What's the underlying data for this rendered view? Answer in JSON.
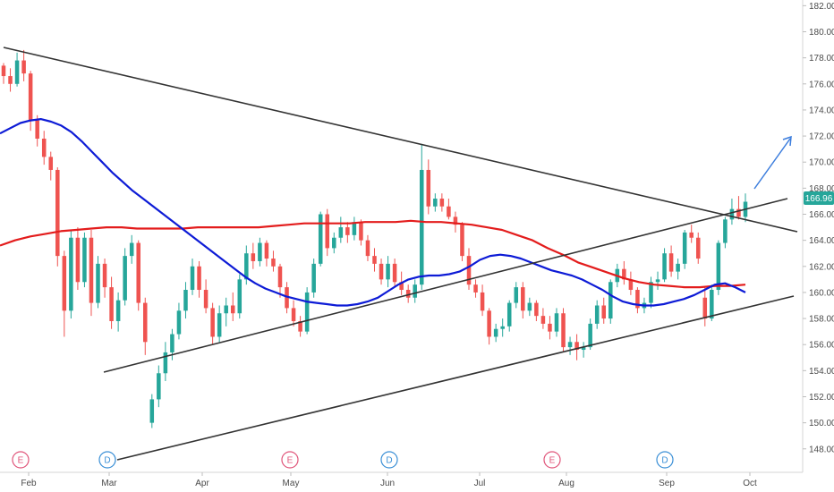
{
  "chart_data": {
    "type": "candlestick",
    "x_labels": [
      "Feb",
      "Mar",
      "Apr",
      "May",
      "Jun",
      "Jul",
      "Aug",
      "Sep",
      "Oct"
    ],
    "y_ticks": [
      "148.00",
      "150.00",
      "152.00",
      "154.00",
      "156.00",
      "158.00",
      "160.00",
      "162.00",
      "164.00",
      "166.00",
      "168.00",
      "170.00",
      "172.00",
      "174.00",
      "176.00",
      "178.00",
      "180.00",
      "182.00"
    ],
    "ylim": [
      146.2,
      182.3
    ],
    "last_price": "166.96",
    "colors": {
      "up": "#26a69a",
      "down": "#ef5350",
      "ma_fast": "#0d1bd6",
      "ma_slow": "#e31c1c",
      "trendline": "#333333",
      "arrow": "#3b7ddd",
      "price_tag": "#26a69a",
      "earnings_marker": "#e0557a",
      "dividend_marker": "#3a8fd6"
    },
    "candles": [
      [
        177.4,
        177.6,
        176.0,
        176.6
      ],
      [
        176.6,
        177.2,
        175.4,
        176.0
      ],
      [
        176.0,
        178.4,
        175.8,
        177.8
      ],
      [
        177.8,
        178.6,
        176.2,
        176.8
      ],
      [
        176.8,
        177.0,
        172.4,
        173.2
      ],
      [
        173.2,
        173.6,
        171.2,
        171.8
      ],
      [
        171.8,
        172.4,
        169.8,
        170.4
      ],
      [
        170.4,
        170.8,
        168.6,
        169.4
      ],
      [
        169.4,
        169.6,
        162.0,
        162.8
      ],
      [
        162.8,
        163.2,
        156.6,
        158.6
      ],
      [
        158.6,
        164.8,
        158.0,
        164.2
      ],
      [
        164.2,
        165.0,
        160.2,
        160.8
      ],
      [
        160.8,
        164.6,
        160.4,
        164.2
      ],
      [
        164.2,
        164.8,
        158.2,
        159.2
      ],
      [
        159.2,
        162.8,
        158.8,
        162.2
      ],
      [
        162.2,
        162.6,
        159.6,
        160.4
      ],
      [
        160.4,
        161.2,
        157.2,
        157.8
      ],
      [
        157.8,
        160.0,
        157.0,
        159.4
      ],
      [
        159.4,
        163.4,
        159.0,
        162.8
      ],
      [
        162.8,
        164.4,
        162.2,
        163.8
      ],
      [
        163.8,
        164.0,
        158.6,
        159.2
      ],
      [
        159.2,
        159.6,
        155.2,
        156.2
      ],
      [
        150.0,
        152.2,
        149.6,
        151.8
      ],
      [
        151.8,
        154.4,
        151.2,
        153.8
      ],
      [
        153.8,
        156.2,
        153.2,
        155.4
      ],
      [
        155.4,
        157.2,
        154.8,
        156.8
      ],
      [
        156.8,
        159.2,
        156.4,
        158.6
      ],
      [
        158.6,
        160.8,
        158.0,
        160.2
      ],
      [
        160.2,
        162.6,
        159.8,
        162.0
      ],
      [
        162.0,
        162.4,
        159.6,
        160.2
      ],
      [
        160.2,
        161.0,
        158.4,
        158.8
      ],
      [
        158.8,
        159.2,
        156.0,
        156.6
      ],
      [
        156.6,
        159.0,
        156.2,
        158.4
      ],
      [
        158.4,
        159.6,
        157.4,
        159.0
      ],
      [
        159.0,
        160.0,
        157.8,
        158.4
      ],
      [
        158.4,
        161.4,
        158.0,
        161.0
      ],
      [
        161.0,
        163.6,
        160.6,
        163.0
      ],
      [
        163.0,
        163.8,
        161.8,
        162.4
      ],
      [
        162.4,
        164.2,
        162.0,
        163.8
      ],
      [
        163.8,
        164.0,
        162.0,
        162.6
      ],
      [
        162.6,
        163.2,
        161.6,
        162.0
      ],
      [
        162.0,
        162.2,
        159.6,
        160.4
      ],
      [
        160.4,
        160.8,
        158.4,
        158.8
      ],
      [
        158.8,
        159.4,
        157.4,
        157.8
      ],
      [
        157.8,
        158.2,
        156.6,
        157.0
      ],
      [
        157.0,
        160.4,
        156.8,
        160.0
      ],
      [
        160.0,
        162.6,
        159.6,
        162.2
      ],
      [
        162.2,
        166.2,
        162.0,
        166.0
      ],
      [
        166.0,
        166.4,
        162.8,
        163.4
      ],
      [
        163.4,
        164.6,
        163.0,
        164.2
      ],
      [
        164.2,
        165.8,
        163.8,
        165.0
      ],
      [
        165.0,
        165.4,
        163.8,
        164.4
      ],
      [
        164.4,
        165.8,
        164.0,
        165.4
      ],
      [
        165.4,
        165.6,
        163.6,
        164.0
      ],
      [
        164.0,
        164.4,
        162.4,
        162.8
      ],
      [
        162.8,
        163.4,
        161.6,
        162.2
      ],
      [
        162.2,
        162.6,
        160.6,
        161.0
      ],
      [
        161.0,
        162.8,
        160.4,
        162.2
      ],
      [
        162.2,
        162.6,
        160.4,
        160.8
      ],
      [
        160.8,
        161.6,
        159.8,
        160.2
      ],
      [
        160.2,
        160.6,
        159.2,
        159.6
      ],
      [
        159.6,
        161.0,
        159.2,
        160.6
      ],
      [
        160.6,
        171.4,
        160.2,
        169.4
      ],
      [
        169.4,
        170.2,
        166.0,
        166.6
      ],
      [
        166.6,
        167.6,
        166.2,
        167.2
      ],
      [
        167.2,
        167.6,
        166.2,
        166.6
      ],
      [
        166.6,
        167.2,
        165.6,
        165.8
      ],
      [
        165.8,
        166.2,
        164.6,
        165.2
      ],
      [
        165.2,
        165.4,
        162.4,
        162.8
      ],
      [
        162.8,
        163.4,
        160.2,
        160.6
      ],
      [
        160.6,
        161.0,
        159.6,
        160.0
      ],
      [
        160.0,
        160.6,
        158.2,
        158.6
      ],
      [
        158.6,
        158.8,
        156.0,
        156.6
      ],
      [
        156.6,
        157.6,
        156.2,
        157.2
      ],
      [
        157.2,
        158.0,
        156.6,
        157.4
      ],
      [
        157.4,
        159.4,
        157.0,
        159.2
      ],
      [
        159.2,
        160.8,
        158.8,
        160.4
      ],
      [
        160.4,
        160.8,
        158.0,
        158.6
      ],
      [
        158.6,
        159.6,
        158.2,
        159.2
      ],
      [
        159.2,
        159.4,
        157.8,
        158.2
      ],
      [
        158.2,
        158.8,
        157.2,
        157.6
      ],
      [
        157.6,
        158.2,
        156.4,
        157.0
      ],
      [
        157.0,
        158.8,
        156.6,
        158.4
      ],
      [
        158.4,
        158.8,
        155.4,
        155.8
      ],
      [
        155.8,
        156.6,
        155.2,
        156.2
      ],
      [
        156.2,
        156.8,
        154.8,
        155.6
      ],
      [
        155.6,
        156.2,
        155.0,
        155.8
      ],
      [
        155.8,
        158.0,
        155.6,
        157.6
      ],
      [
        157.6,
        159.4,
        157.2,
        159.0
      ],
      [
        159.0,
        159.6,
        157.6,
        158.0
      ],
      [
        158.0,
        161.0,
        157.6,
        160.8
      ],
      [
        160.8,
        162.2,
        160.4,
        161.8
      ],
      [
        161.8,
        162.4,
        160.6,
        161.0
      ],
      [
        161.0,
        161.6,
        159.8,
        160.2
      ],
      [
        160.2,
        160.4,
        158.4,
        158.8
      ],
      [
        158.8,
        159.6,
        158.4,
        159.2
      ],
      [
        159.2,
        161.2,
        158.8,
        160.8
      ],
      [
        160.8,
        161.6,
        160.2,
        161.0
      ],
      [
        161.0,
        163.4,
        160.8,
        163.0
      ],
      [
        163.0,
        163.6,
        161.2,
        161.6
      ],
      [
        161.6,
        162.6,
        161.0,
        162.2
      ],
      [
        162.2,
        164.8,
        161.8,
        164.6
      ],
      [
        164.6,
        165.2,
        163.8,
        164.2
      ],
      [
        164.2,
        164.6,
        162.2,
        162.6
      ],
      [
        159.6,
        160.4,
        157.4,
        158.0
      ],
      [
        158.0,
        160.6,
        157.8,
        160.2
      ],
      [
        160.2,
        164.0,
        159.8,
        163.8
      ],
      [
        163.8,
        165.8,
        163.4,
        165.6
      ],
      [
        165.6,
        167.2,
        165.2,
        166.4
      ],
      [
        166.4,
        167.4,
        165.6,
        165.8
      ],
      [
        165.8,
        167.6,
        165.4,
        166.96
      ]
    ],
    "series": [
      {
        "name": "",
        "values": [
          172.2,
          172.6,
          173.0,
          173.2,
          173.3,
          173.1,
          172.8,
          172.3,
          171.6,
          170.8,
          170.0,
          169.2,
          168.5,
          167.8,
          167.2,
          166.6,
          166.0,
          165.4,
          164.8,
          164.2,
          163.6,
          163.0,
          162.4,
          161.8,
          161.2,
          160.7,
          160.3,
          160.0,
          159.7,
          159.5,
          159.3,
          159.2,
          159.1,
          159.0,
          159.0,
          159.1,
          159.3,
          159.6,
          160.1,
          160.6,
          161.0,
          161.2,
          161.3,
          161.3,
          161.4,
          161.6,
          162.0,
          162.5,
          162.8,
          162.9,
          162.8,
          162.6,
          162.3,
          162.0,
          161.7,
          161.5,
          161.3,
          161.0,
          160.6,
          160.2,
          159.7,
          159.3,
          159.1,
          159.0,
          159.0,
          159.1,
          159.3,
          159.5,
          159.8,
          160.2,
          160.6,
          160.7,
          160.4,
          160.0
        ]
      },
      {
        "name": "",
        "values": [
          163.6,
          164.0,
          164.3,
          164.5,
          164.7,
          164.8,
          164.9,
          165.0,
          165.0,
          164.9,
          164.9,
          164.9,
          164.9,
          165.0,
          165.0,
          165.0,
          165.0,
          165.0,
          165.1,
          165.2,
          165.3,
          165.3,
          165.3,
          165.3,
          165.4,
          165.4,
          165.4,
          165.5,
          165.4,
          165.4,
          165.3,
          165.2,
          165.0,
          164.8,
          164.4,
          164.0,
          163.4,
          162.9,
          162.3,
          161.9,
          161.5,
          161.1,
          160.8,
          160.6,
          160.5,
          160.4,
          160.4,
          160.5,
          160.5,
          160.6
        ]
      }
    ],
    "annotations": {
      "markers": [
        {
          "label": "E",
          "kind": "earnings"
        },
        {
          "label": "D",
          "kind": "dividend"
        },
        {
          "label": "E",
          "kind": "earnings"
        },
        {
          "label": "D",
          "kind": "dividend"
        },
        {
          "label": "E",
          "kind": "earnings"
        },
        {
          "label": "D",
          "kind": "dividend"
        }
      ]
    }
  }
}
